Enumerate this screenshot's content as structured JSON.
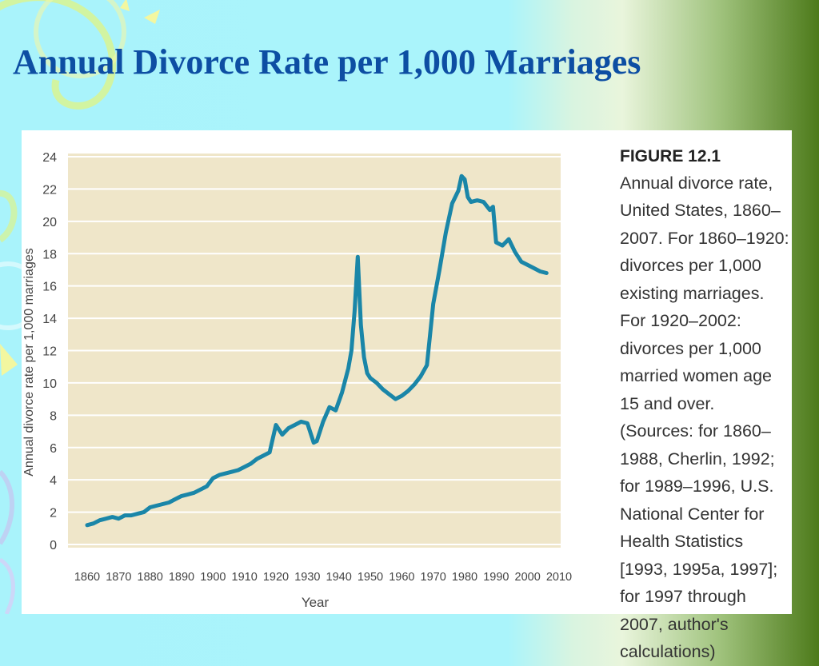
{
  "slide": {
    "title": "Annual Divorce Rate per 1,000 Marriages",
    "background_colors": [
      "#a9f3fb",
      "#4d7a1a"
    ],
    "title_color": "#0d4ea3"
  },
  "figure": {
    "label": "FIGURE 12.1",
    "caption": "Annual divorce rate, United States, 1860–2007. For 1860–1920: divorces per 1,000 existing marriages. For 1920–2002: divorces per 1,000 married women age 15 and over. (Sources: for 1860–1988, Cherlin, 1992; for 1989–1996, U.S. National Center for Health Statistics [1993, 1995a, 1997]; for 1997 through 2007, author's calculations)"
  },
  "chart_data": {
    "type": "line",
    "xlabel": "Year",
    "ylabel": "Annual divorce rate per 1,000 marriages",
    "xlim": [
      1860,
      2010
    ],
    "ylim": [
      0,
      24
    ],
    "xticks": [
      1860,
      1870,
      1880,
      1890,
      1900,
      1910,
      1920,
      1930,
      1940,
      1950,
      1960,
      1970,
      1980,
      1990,
      2000,
      2010
    ],
    "yticks": [
      0,
      2,
      4,
      6,
      8,
      10,
      12,
      14,
      16,
      18,
      20,
      22,
      24
    ],
    "grid": "horizontal",
    "plot_background": "#efe6c9",
    "line_color": "#1a86a8",
    "series": [
      {
        "x": [
          1860,
          1862,
          1864,
          1866,
          1868,
          1870,
          1872,
          1874,
          1876,
          1878,
          1880,
          1882,
          1884,
          1886,
          1888,
          1890,
          1892,
          1894,
          1896,
          1898,
          1900,
          1902,
          1904,
          1906,
          1908,
          1910,
          1912,
          1914,
          1916,
          1918,
          1920,
          1922,
          1924,
          1926,
          1928,
          1930,
          1932,
          1933,
          1935,
          1937,
          1939,
          1941,
          1943,
          1944,
          1945,
          1946,
          1947,
          1948,
          1949,
          1950,
          1952,
          1954,
          1956,
          1958,
          1960,
          1962,
          1964,
          1966,
          1968,
          1970,
          1972,
          1974,
          1976,
          1978,
          1979,
          1980,
          1981,
          1982,
          1984,
          1986,
          1988,
          1989,
          1990,
          1992,
          1994,
          1996,
          1998,
          2000,
          2002,
          2004,
          2006
        ],
        "y": [
          1.2,
          1.3,
          1.5,
          1.6,
          1.7,
          1.6,
          1.8,
          1.8,
          1.9,
          2.0,
          2.3,
          2.4,
          2.5,
          2.6,
          2.8,
          3.0,
          3.1,
          3.2,
          3.4,
          3.6,
          4.1,
          4.3,
          4.4,
          4.5,
          4.6,
          4.8,
          5.0,
          5.3,
          5.5,
          5.7,
          7.4,
          6.8,
          7.2,
          7.4,
          7.6,
          7.5,
          6.3,
          6.4,
          7.6,
          8.5,
          8.3,
          9.4,
          10.9,
          12.0,
          14.4,
          17.8,
          13.6,
          11.6,
          10.6,
          10.3,
          10.0,
          9.6,
          9.3,
          9.0,
          9.2,
          9.5,
          9.9,
          10.4,
          11.1,
          14.9,
          17.0,
          19.3,
          21.1,
          21.9,
          22.8,
          22.6,
          21.5,
          21.2,
          21.3,
          21.2,
          20.7,
          20.9,
          18.7,
          18.5,
          18.9,
          18.1,
          17.5,
          17.3,
          17.1,
          16.9,
          16.8
        ]
      }
    ]
  }
}
